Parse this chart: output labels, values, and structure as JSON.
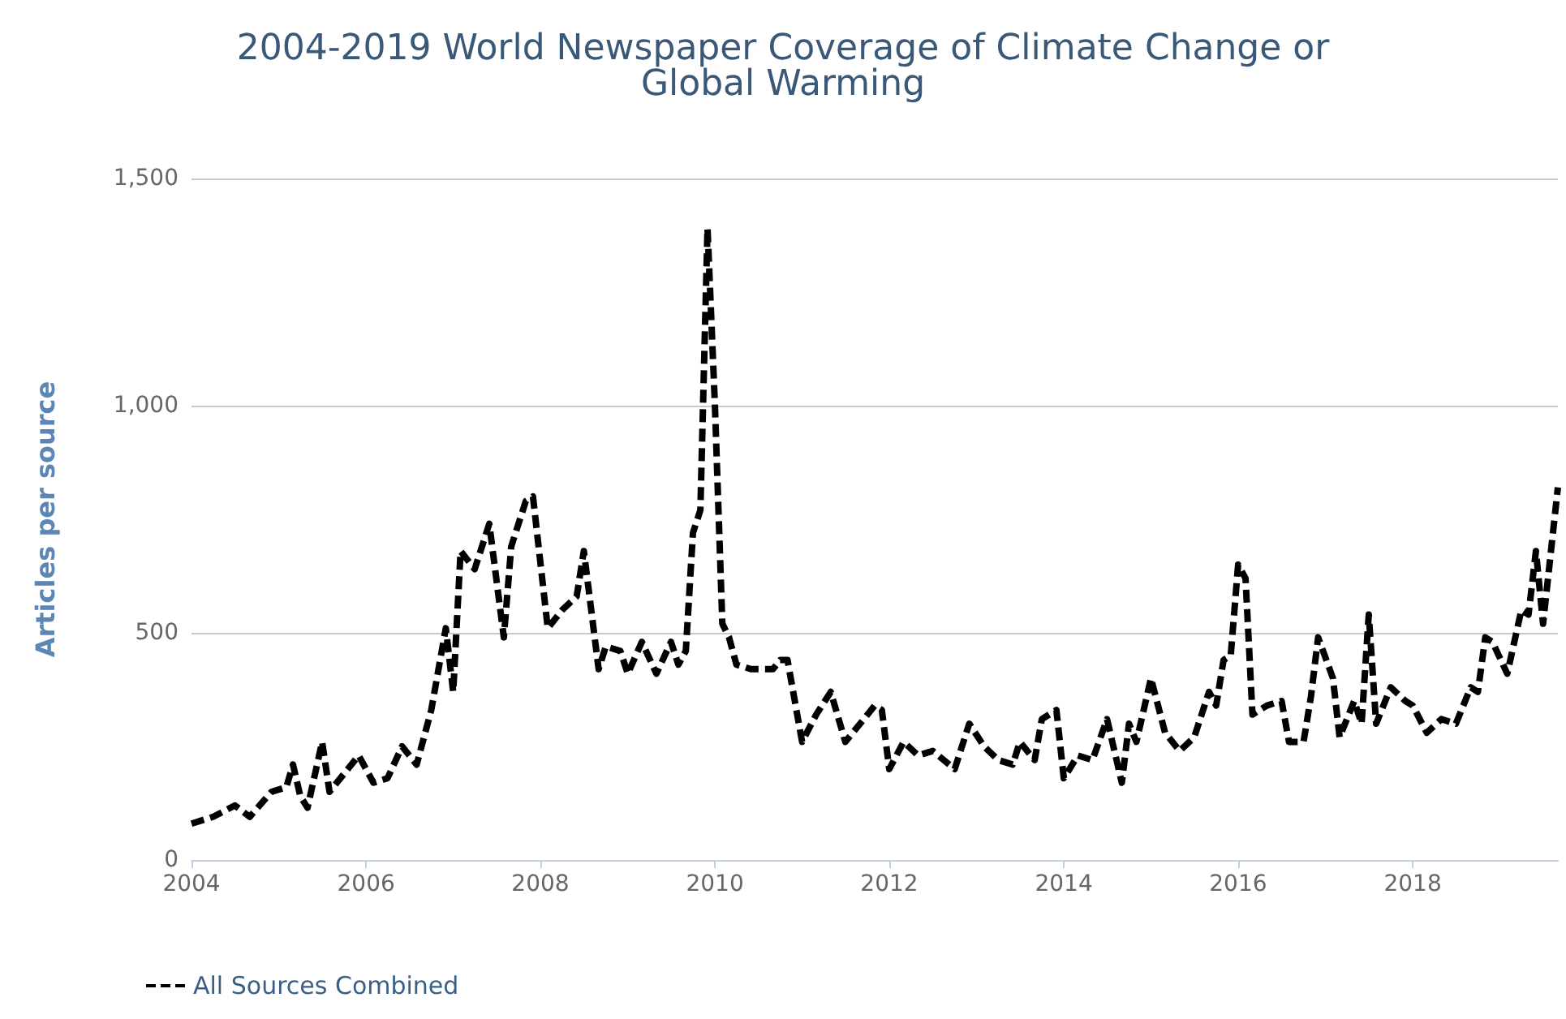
{
  "chart_data": {
    "type": "line",
    "title": "2004-2019 World Newspaper Coverage of Climate Change or\nGlobal Warming",
    "ylabel": "Articles per source",
    "x": [
      "2004-01",
      "2004-04",
      "2004-07",
      "2004-09",
      "2004-12",
      "2005-02",
      "2005-03",
      "2005-04",
      "2005-05",
      "2005-07",
      "2005-08",
      "2005-10",
      "2005-12",
      "2006-02",
      "2006-04",
      "2006-06",
      "2006-08",
      "2006-10",
      "2006-12",
      "2007-01",
      "2007-02",
      "2007-04",
      "2007-06",
      "2007-08",
      "2007-09",
      "2007-11",
      "2007-12",
      "2008-02",
      "2008-04",
      "2008-06",
      "2008-07",
      "2008-09",
      "2008-10",
      "2008-12",
      "2009-01",
      "2009-03",
      "2009-05",
      "2009-07",
      "2009-08",
      "2009-09",
      "2009-10",
      "2009-11",
      "2009-12",
      "2010-01",
      "2010-02",
      "2010-03",
      "2010-04",
      "2010-06",
      "2010-09",
      "2010-10",
      "2010-11",
      "2011-01",
      "2011-03",
      "2011-05",
      "2011-07",
      "2011-09",
      "2011-11",
      "2011-12",
      "2012-01",
      "2012-03",
      "2012-05",
      "2012-07",
      "2012-10",
      "2012-12",
      "2013-02",
      "2013-04",
      "2013-06",
      "2013-07",
      "2013-09",
      "2013-10",
      "2013-12",
      "2014-01",
      "2014-03",
      "2014-05",
      "2014-07",
      "2014-09",
      "2014-10",
      "2014-11",
      "2015-01",
      "2015-03",
      "2015-05",
      "2015-07",
      "2015-09",
      "2015-10",
      "2015-11",
      "2015-12",
      "2016-01",
      "2016-02",
      "2016-03",
      "2016-05",
      "2016-07",
      "2016-08",
      "2016-10",
      "2016-11",
      "2016-12",
      "2017-02",
      "2017-03",
      "2017-05",
      "2017-06",
      "2017-07",
      "2017-08",
      "2017-10",
      "2017-12",
      "2018-01",
      "2018-03",
      "2018-05",
      "2018-07",
      "2018-09",
      "2018-10",
      "2018-11",
      "2018-12",
      "2019-02",
      "2019-04",
      "2019-05",
      "2019-06",
      "2019-07",
      "2019-09"
    ],
    "series": [
      {
        "name": "All Sources Combined",
        "color": "#000000",
        "values": [
          80,
          95,
          120,
          95,
          150,
          160,
          210,
          140,
          115,
          260,
          150,
          190,
          230,
          170,
          180,
          250,
          210,
          330,
          510,
          370,
          680,
          640,
          740,
          490,
          690,
          790,
          800,
          510,
          550,
          580,
          680,
          420,
          470,
          460,
          410,
          480,
          410,
          480,
          430,
          460,
          720,
          770,
          1390,
          1000,
          520,
          490,
          430,
          420,
          420,
          440,
          440,
          260,
          320,
          370,
          260,
          300,
          340,
          330,
          200,
          260,
          230,
          240,
          200,
          300,
          250,
          220,
          210,
          260,
          220,
          310,
          330,
          180,
          230,
          220,
          310,
          170,
          300,
          260,
          400,
          280,
          240,
          270,
          370,
          340,
          440,
          450,
          650,
          620,
          320,
          340,
          350,
          260,
          260,
          360,
          490,
          400,
          270,
          350,
          300,
          540,
          300,
          380,
          350,
          340,
          280,
          310,
          300,
          380,
          370,
          490,
          480,
          410,
          550,
          540,
          680,
          520,
          820
        ]
      }
    ],
    "xlim": [
      "2004-01",
      "2019-09"
    ],
    "xticks": [
      "2004",
      "2006",
      "2008",
      "2010",
      "2012",
      "2014",
      "2016",
      "2018"
    ],
    "ylim": [
      0,
      1500
    ],
    "yticks": [
      0,
      {
        "value": 500,
        "label": "500"
      },
      {
        "value": 1000,
        "label": "1,000"
      },
      {
        "value": 1500,
        "label": "1,500"
      }
    ],
    "grid": "y",
    "legend": "bottom left",
    "marker": "none",
    "line_style": "dashed"
  }
}
